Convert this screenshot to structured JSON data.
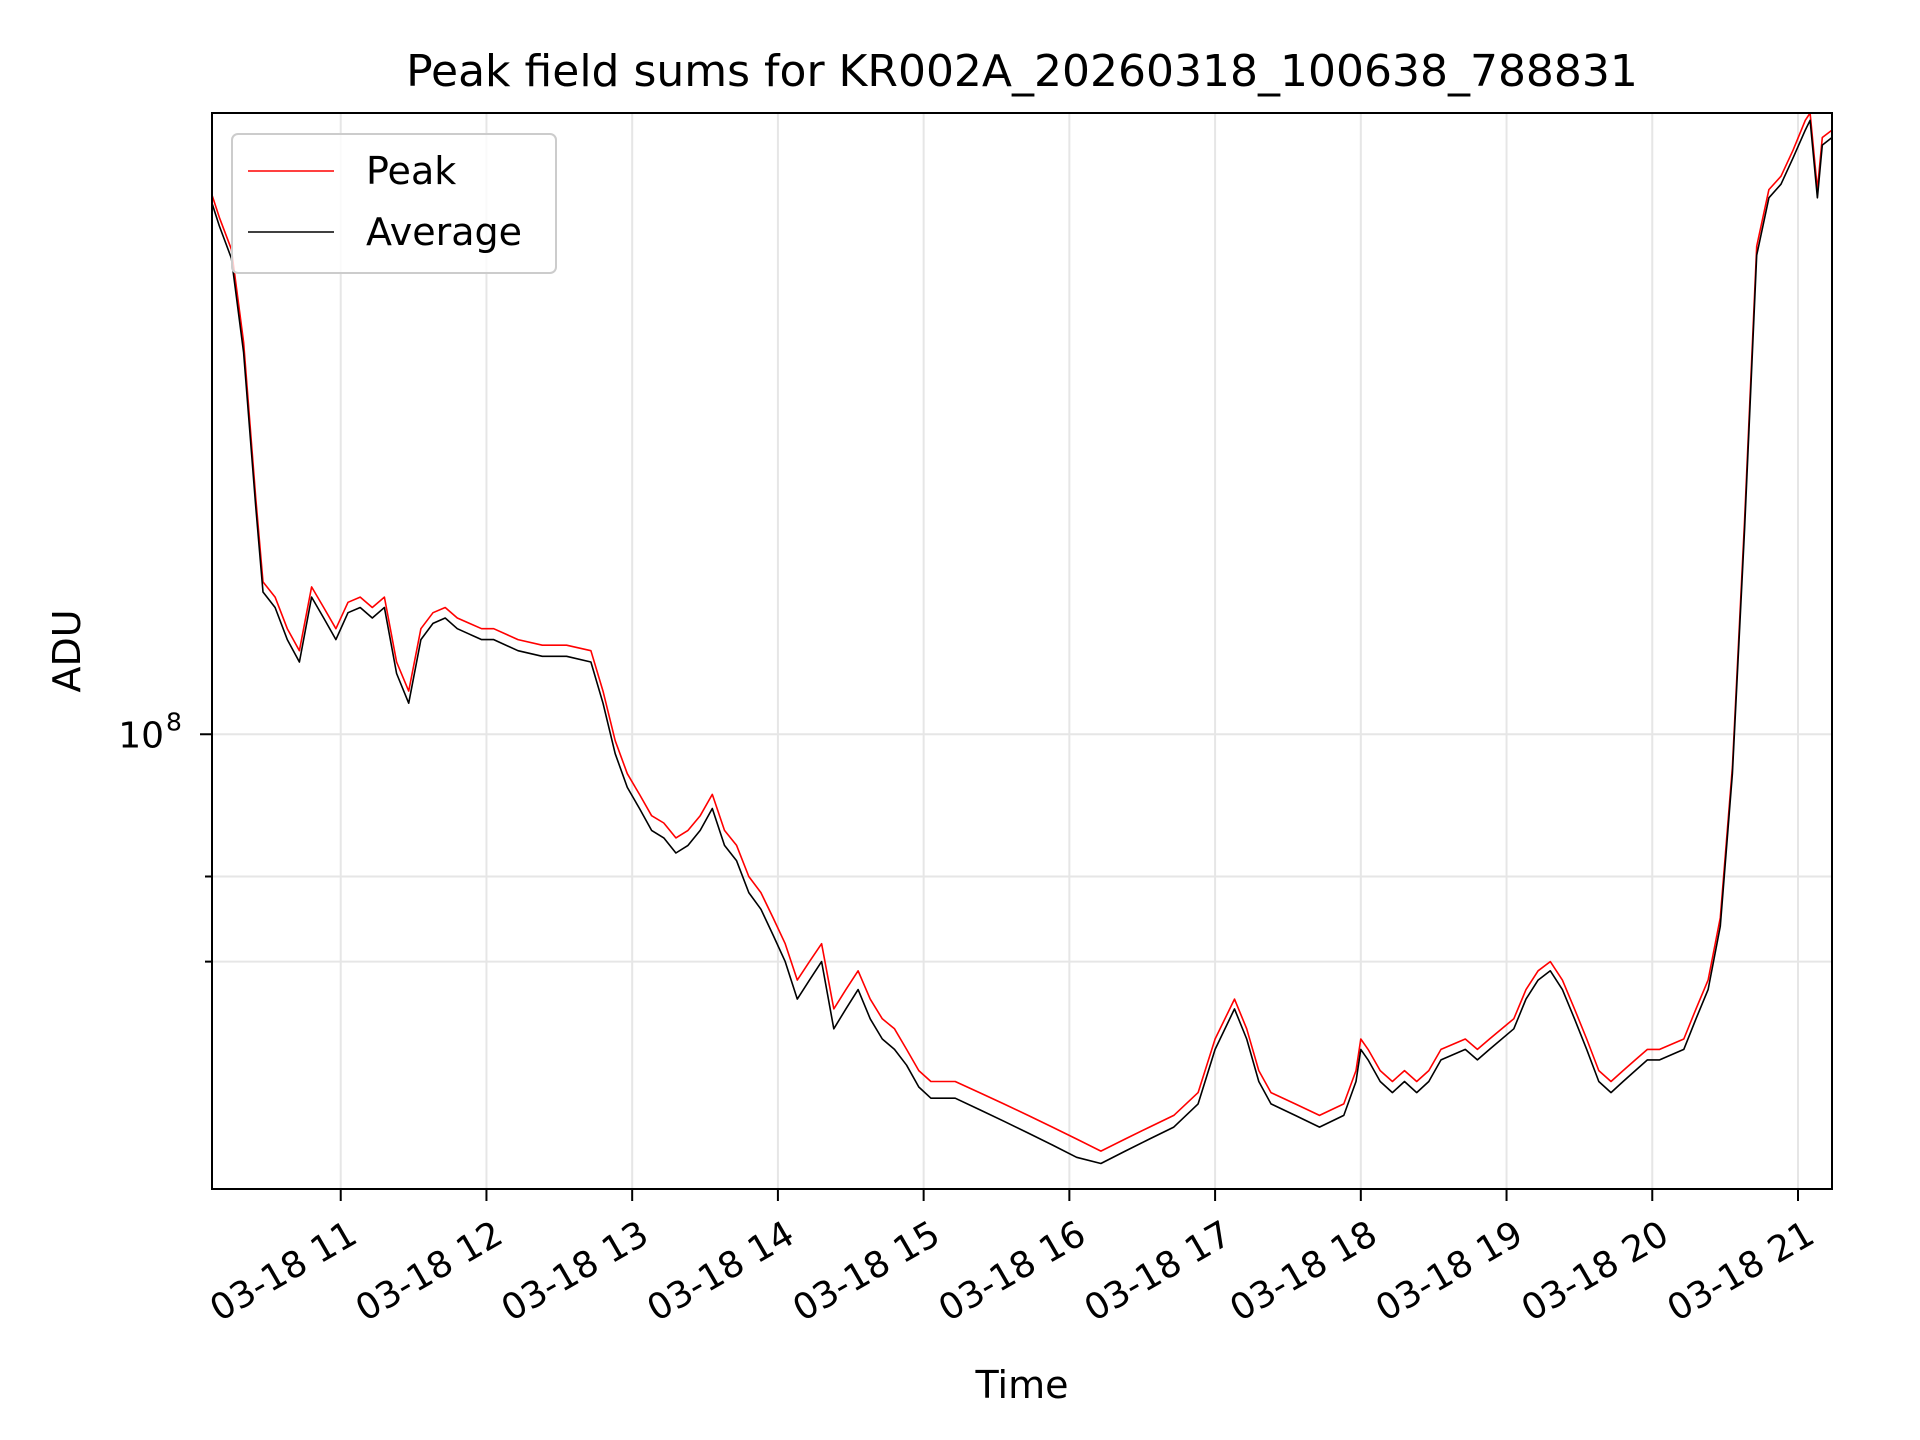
{
  "chart_data": {
    "type": "line",
    "title": "Peak field sums for KR002A_20260318_100638_788831",
    "xlabel": "Time",
    "ylabel": "ADU",
    "x_unit": "time (hours, 2026-03-18)",
    "xlim": [
      "03-18 10:07",
      "03-18 21:14"
    ],
    "ylim": [
      49000000,
      265000000
    ],
    "y_scale": "log",
    "grid": true,
    "legend_position": "upper-left",
    "x_ticks": [
      "03-18 11",
      "03-18 12",
      "03-18 13",
      "03-18 14",
      "03-18 15",
      "03-18 16",
      "03-18 17",
      "03-18 18",
      "03-18 19",
      "03-18 20",
      "03-18 21"
    ],
    "y_tick_labels": [
      {
        "base": "10",
        "exp": "8",
        "value": 100000000
      }
    ],
    "y_minor_ticks": [
      70000000,
      80000000
    ],
    "series": [
      {
        "name": "Peak",
        "color": "#ff0000",
        "x": [
          "10:07",
          "10:10",
          "10:15",
          "10:20",
          "10:25",
          "10:28",
          "10:33",
          "10:38",
          "10:43",
          "10:48",
          "10:53",
          "10:58",
          "11:03",
          "11:08",
          "11:13",
          "11:18",
          "11:23",
          "11:28",
          "11:33",
          "11:38",
          "11:43",
          "11:48",
          "11:53",
          "11:58",
          "12:03",
          "12:13",
          "12:23",
          "12:33",
          "12:43",
          "12:48",
          "12:53",
          "12:58",
          "13:03",
          "13:08",
          "13:13",
          "13:18",
          "13:23",
          "13:28",
          "13:33",
          "13:38",
          "13:43",
          "13:48",
          "13:53",
          "13:58",
          "14:03",
          "14:08",
          "14:13",
          "14:18",
          "14:23",
          "14:28",
          "14:33",
          "14:38",
          "14:43",
          "14:48",
          "14:53",
          "14:58",
          "15:03",
          "15:13",
          "15:23",
          "15:33",
          "15:43",
          "15:53",
          "16:03",
          "16:13",
          "16:23",
          "16:33",
          "16:43",
          "16:53",
          "17:00",
          "17:08",
          "17:13",
          "17:18",
          "17:23",
          "17:33",
          "17:43",
          "17:53",
          "17:58",
          "18:00",
          "18:03",
          "18:08",
          "18:13",
          "18:18",
          "18:23",
          "18:28",
          "18:33",
          "18:43",
          "18:48",
          "18:53",
          "19:03",
          "19:08",
          "19:13",
          "19:18",
          "19:23",
          "19:28",
          "19:33",
          "19:38",
          "19:43",
          "19:48",
          "19:53",
          "19:58",
          "20:03",
          "20:13",
          "20:18",
          "20:23",
          "20:28",
          "20:33",
          "20:38",
          "20:43",
          "20:48",
          "20:53",
          "20:58",
          "21:03",
          "21:05",
          "21:08",
          "21:10",
          "21:14"
        ],
        "values": [
          233000000,
          225000000,
          214000000,
          185000000,
          145000000,
          127000000,
          124000000,
          118000000,
          114000000,
          126000000,
          122000000,
          118000000,
          123000000,
          124000000,
          122000000,
          124000000,
          112000000,
          107000000,
          118000000,
          121000000,
          122000000,
          120000000,
          119000000,
          118000000,
          118000000,
          116000000,
          115000000,
          115000000,
          114000000,
          107000000,
          99000000,
          94000000,
          91000000,
          88000000,
          87000000,
          85000000,
          86000000,
          88000000,
          91000000,
          86000000,
          84000000,
          80000000,
          78000000,
          75000000,
          72000000,
          68000000,
          70000000,
          72000000,
          65000000,
          67000000,
          69000000,
          66000000,
          64000000,
          63000000,
          61000000,
          59000000,
          58000000,
          58000000,
          57000000,
          56000000,
          55000000,
          54000000,
          53000000,
          52000000,
          53000000,
          54000000,
          55000000,
          57000000,
          62000000,
          66000000,
          63000000,
          59000000,
          57000000,
          56000000,
          55000000,
          56000000,
          59000000,
          62000000,
          61000000,
          59000000,
          58000000,
          59000000,
          58000000,
          59000000,
          61000000,
          62000000,
          61000000,
          62000000,
          64000000,
          67000000,
          69000000,
          70000000,
          68000000,
          65000000,
          62000000,
          59000000,
          58000000,
          59000000,
          60000000,
          61000000,
          61000000,
          62000000,
          65000000,
          68000000,
          75000000,
          95000000,
          140000000,
          215000000,
          235000000,
          240000000,
          250000000,
          262000000,
          265000000,
          235000000,
          255000000,
          258000000
        ]
      },
      {
        "name": "Average",
        "color": "#000000",
        "x": [
          "10:07",
          "10:10",
          "10:15",
          "10:20",
          "10:25",
          "10:28",
          "10:33",
          "10:38",
          "10:43",
          "10:48",
          "10:53",
          "10:58",
          "11:03",
          "11:08",
          "11:13",
          "11:18",
          "11:23",
          "11:28",
          "11:33",
          "11:38",
          "11:43",
          "11:48",
          "11:53",
          "11:58",
          "12:03",
          "12:13",
          "12:23",
          "12:33",
          "12:43",
          "12:48",
          "12:53",
          "12:58",
          "13:03",
          "13:08",
          "13:13",
          "13:18",
          "13:23",
          "13:28",
          "13:33",
          "13:38",
          "13:43",
          "13:48",
          "13:53",
          "13:58",
          "14:03",
          "14:08",
          "14:13",
          "14:18",
          "14:23",
          "14:28",
          "14:33",
          "14:38",
          "14:43",
          "14:48",
          "14:53",
          "14:58",
          "15:03",
          "15:13",
          "15:23",
          "15:33",
          "15:43",
          "15:53",
          "16:03",
          "16:13",
          "16:23",
          "16:33",
          "16:43",
          "16:53",
          "17:00",
          "17:08",
          "17:13",
          "17:18",
          "17:23",
          "17:33",
          "17:43",
          "17:53",
          "17:58",
          "18:00",
          "18:03",
          "18:08",
          "18:13",
          "18:18",
          "18:23",
          "18:28",
          "18:33",
          "18:43",
          "18:48",
          "18:53",
          "19:03",
          "19:08",
          "19:13",
          "19:18",
          "19:23",
          "19:28",
          "19:33",
          "19:38",
          "19:43",
          "19:48",
          "19:53",
          "19:58",
          "20:03",
          "20:13",
          "20:18",
          "20:23",
          "20:28",
          "20:33",
          "20:38",
          "20:43",
          "20:48",
          "20:53",
          "20:58",
          "21:03",
          "21:05",
          "21:08",
          "21:10",
          "21:14"
        ],
        "values": [
          230000000,
          222000000,
          211000000,
          182000000,
          143000000,
          125000000,
          122000000,
          116000000,
          112000000,
          124000000,
          120000000,
          116000000,
          121000000,
          122000000,
          120000000,
          122000000,
          110000000,
          105000000,
          116000000,
          119000000,
          120000000,
          118000000,
          117000000,
          116000000,
          116000000,
          114000000,
          113000000,
          113000000,
          112000000,
          105000000,
          97000000,
          92000000,
          89000000,
          86000000,
          85000000,
          83000000,
          84000000,
          86000000,
          89000000,
          84000000,
          82000000,
          78000000,
          76000000,
          73000000,
          70000000,
          66000000,
          68000000,
          70000000,
          63000000,
          65000000,
          67000000,
          64000000,
          62000000,
          61000000,
          59500000,
          57500000,
          56500000,
          56500000,
          55500000,
          54500000,
          53500000,
          52500000,
          51500000,
          51000000,
          52000000,
          53000000,
          54000000,
          56000000,
          61000000,
          65000000,
          62000000,
          58000000,
          56000000,
          55000000,
          54000000,
          55000000,
          58000000,
          61000000,
          60000000,
          58000000,
          57000000,
          58000000,
          57000000,
          58000000,
          60000000,
          61000000,
          60000000,
          61000000,
          63000000,
          66000000,
          68000000,
          69000000,
          67000000,
          64000000,
          61000000,
          58000000,
          57000000,
          58000000,
          59000000,
          60000000,
          60000000,
          61000000,
          64000000,
          67000000,
          74000000,
          94000000,
          138000000,
          212000000,
          232000000,
          237000000,
          247000000,
          258000000,
          262000000,
          232000000,
          252000000,
          255000000
        ]
      }
    ]
  }
}
